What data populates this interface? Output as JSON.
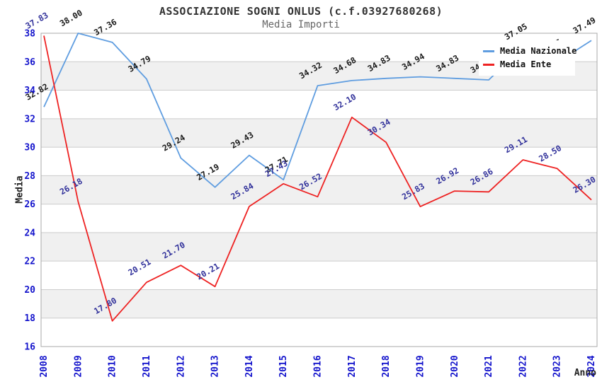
{
  "header": {
    "title": "ASSOCIAZIONE SOGNI ONLUS (c.f.03927680268)",
    "subtitle": "Media Importi"
  },
  "axes": {
    "y_title": "Media",
    "x_title": "Anno",
    "y_ticks": [
      16,
      18,
      20,
      22,
      24,
      26,
      28,
      30,
      32,
      34,
      36,
      38
    ],
    "x_ticks": [
      "2008",
      "2009",
      "2010",
      "2011",
      "2012",
      "2013",
      "2014",
      "2015",
      "2016",
      "2017",
      "2018",
      "2019",
      "2020",
      "2021",
      "2022",
      "2023",
      "2024"
    ],
    "tick_color": "#1414cc"
  },
  "legend": {
    "position": "top-right-inside",
    "items": [
      {
        "label": "Media Nazionale",
        "color": "#5f9de0"
      },
      {
        "label": "Media Ente",
        "color": "#ee2222"
      }
    ]
  },
  "chart_data": {
    "type": "line",
    "title": "ASSOCIAZIONE SOGNI ONLUS (c.f.03927680268)",
    "subtitle": "Media Importi",
    "xlabel": "Anno",
    "ylabel": "Media",
    "ylim": [
      16,
      38
    ],
    "grid": "horizontal-lines-with-alternating-gray-bands",
    "band_color": "#f0f0f0",
    "gridline_color": "#cccccc",
    "border_color": "#aaaaaa",
    "categories": [
      "2008",
      "2009",
      "2010",
      "2011",
      "2012",
      "2013",
      "2014",
      "2015",
      "2016",
      "2017",
      "2018",
      "2019",
      "2020",
      "2021",
      "2022",
      "2023",
      "2024"
    ],
    "series": [
      {
        "name": "Media Nazionale",
        "color": "#5f9de0",
        "label_color": "#1a1a1a",
        "values": [
          32.82,
          38.0,
          37.36,
          34.79,
          29.24,
          27.19,
          29.43,
          27.71,
          34.32,
          34.68,
          34.83,
          34.94,
          34.83,
          34.72,
          37.05,
          35.95,
          37.49
        ]
      },
      {
        "name": "Media Ente",
        "color": "#ee2222",
        "label_color": "#32329b",
        "values": [
          37.83,
          26.18,
          17.8,
          20.51,
          21.7,
          20.21,
          25.84,
          27.43,
          26.52,
          32.1,
          30.34,
          25.83,
          26.92,
          26.86,
          29.11,
          28.5,
          26.3
        ]
      }
    ]
  }
}
